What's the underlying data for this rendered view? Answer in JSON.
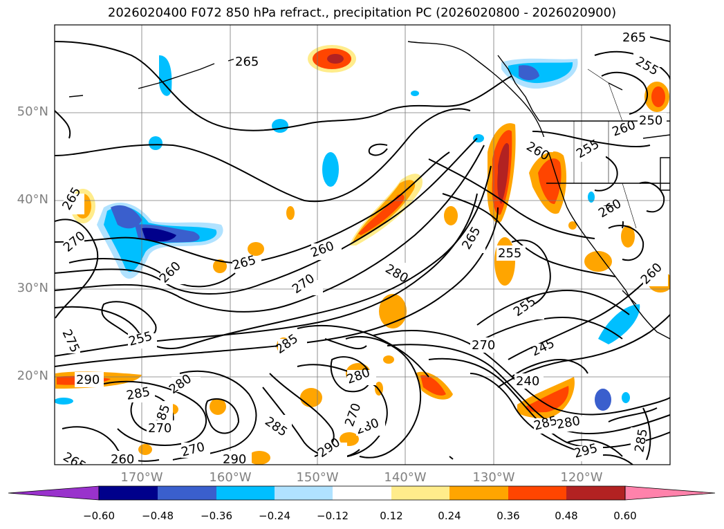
{
  "title": "2026020400 F072 850 hPa refract., precipitation PC (2026020800 - 2026020900)",
  "lat_labels": [
    "50°N",
    "40°N",
    "30°N",
    "20°N"
  ],
  "lon_labels": [
    "170°W",
    "160°W",
    "150°W",
    "140°W",
    "130°W",
    "120°W"
  ],
  "colorbar": {
    "ticks": [
      "−0.60",
      "−0.48",
      "−0.36",
      "−0.24",
      "−0.12",
      "0.12",
      "0.24",
      "0.36",
      "0.48",
      "0.60"
    ],
    "colors": [
      "#9932cc",
      "#00008b",
      "#3a5fcd",
      "#00bfff",
      "#b0e2ff",
      "#ffffff",
      "#ffec8b",
      "#ffa500",
      "#ff4500",
      "#b22222",
      "#ff82ab"
    ]
  },
  "contour_labels": [
    "265",
    "255",
    "250",
    "260",
    "255",
    "260",
    "265",
    "270",
    "260",
    "260",
    "265",
    "270",
    "280",
    "260",
    "265",
    "255",
    "255",
    "275",
    "255",
    "270",
    "245",
    "240",
    "290",
    "285",
    "280",
    "285",
    "285",
    "280",
    "270",
    "280",
    "270",
    "290",
    "285",
    "265",
    "260",
    "290",
    "295",
    "285"
  ]
}
